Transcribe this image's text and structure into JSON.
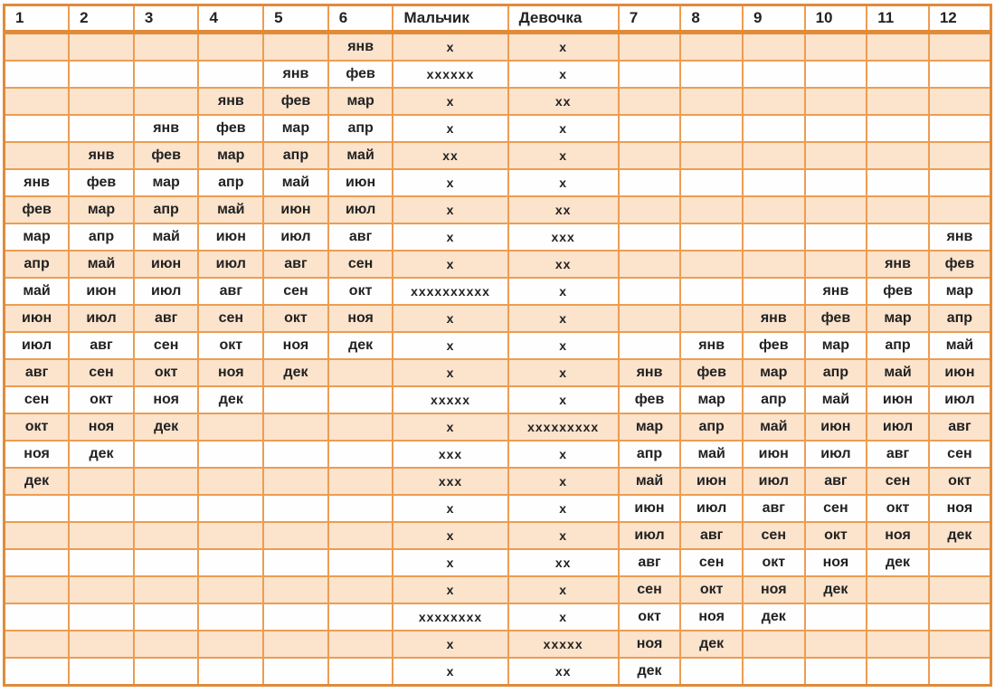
{
  "chart_data": {
    "type": "table",
    "title": "",
    "columns": [
      "1",
      "2",
      "3",
      "4",
      "5",
      "6",
      "Мальчик",
      "Девочка",
      "7",
      "8",
      "9",
      "10",
      "11",
      "12"
    ],
    "rows": [
      [
        "",
        "",
        "",
        "",
        "",
        "янв",
        "х",
        "х",
        "",
        "",
        "",
        "",
        "",
        ""
      ],
      [
        "",
        "",
        "",
        "",
        "янв",
        "фев",
        "хххххх",
        "х",
        "",
        "",
        "",
        "",
        "",
        ""
      ],
      [
        "",
        "",
        "",
        "янв",
        "фев",
        "мар",
        "х",
        "хх",
        "",
        "",
        "",
        "",
        "",
        ""
      ],
      [
        "",
        "",
        "янв",
        "фев",
        "мар",
        "апр",
        "х",
        "х",
        "",
        "",
        "",
        "",
        "",
        ""
      ],
      [
        "",
        "янв",
        "фев",
        "мар",
        "апр",
        "май",
        "хх",
        "х",
        "",
        "",
        "",
        "",
        "",
        ""
      ],
      [
        "янв",
        "фев",
        "мар",
        "апр",
        "май",
        "июн",
        "х",
        "х",
        "",
        "",
        "",
        "",
        "",
        ""
      ],
      [
        "фев",
        "мар",
        "апр",
        "май",
        "июн",
        "июл",
        "х",
        "хх",
        "",
        "",
        "",
        "",
        "",
        ""
      ],
      [
        "мар",
        "апр",
        "май",
        "июн",
        "июл",
        "авг",
        "х",
        "ххх",
        "",
        "",
        "",
        "",
        "",
        "янв"
      ],
      [
        "апр",
        "май",
        "июн",
        "июл",
        "авг",
        "сен",
        "х",
        "хх",
        "",
        "",
        "",
        "",
        "янв",
        "фев"
      ],
      [
        "май",
        "июн",
        "июл",
        "авг",
        "сен",
        "окт",
        "хххххххххх",
        "х",
        "",
        "",
        "",
        "янв",
        "фев",
        "мар"
      ],
      [
        "июн",
        "июл",
        "авг",
        "сен",
        "окт",
        "ноя",
        "х",
        "х",
        "",
        "",
        "янв",
        "фев",
        "мар",
        "апр"
      ],
      [
        "июл",
        "авг",
        "сен",
        "окт",
        "ноя",
        "дек",
        "х",
        "х",
        "",
        "янв",
        "фев",
        "мар",
        "апр",
        "май"
      ],
      [
        "авг",
        "сен",
        "окт",
        "ноя",
        "дек",
        "",
        "х",
        "х",
        "янв",
        "фев",
        "мар",
        "апр",
        "май",
        "июн"
      ],
      [
        "сен",
        "окт",
        "ноя",
        "дек",
        "",
        "",
        "ххххх",
        "х",
        "фев",
        "мар",
        "апр",
        "май",
        "июн",
        "июл"
      ],
      [
        "окт",
        "ноя",
        "дек",
        "",
        "",
        "",
        "х",
        "ххххххххх",
        "мар",
        "апр",
        "май",
        "июн",
        "июл",
        "авг"
      ],
      [
        "ноя",
        "дек",
        "",
        "",
        "",
        "",
        "ххх",
        "х",
        "апр",
        "май",
        "июн",
        "июл",
        "авг",
        "сен"
      ],
      [
        "дек",
        "",
        "",
        "",
        "",
        "",
        "ххх",
        "х",
        "май",
        "июн",
        "июл",
        "авг",
        "сен",
        "окт"
      ],
      [
        "",
        "",
        "",
        "",
        "",
        "",
        "х",
        "х",
        "июн",
        "июл",
        "авг",
        "сен",
        "окт",
        "ноя"
      ],
      [
        "",
        "",
        "",
        "",
        "",
        "",
        "х",
        "х",
        "июл",
        "авг",
        "сен",
        "окт",
        "ноя",
        "дек"
      ],
      [
        "",
        "",
        "",
        "",
        "",
        "",
        "х",
        "хх",
        "авг",
        "сен",
        "окт",
        "ноя",
        "дек",
        ""
      ],
      [
        "",
        "",
        "",
        "",
        "",
        "",
        "х",
        "х",
        "сен",
        "окт",
        "ноя",
        "дек",
        "",
        ""
      ],
      [
        "",
        "",
        "",
        "",
        "",
        "",
        "хххххххх",
        "х",
        "окт",
        "ноя",
        "дек",
        "",
        "",
        ""
      ],
      [
        "",
        "",
        "",
        "",
        "",
        "",
        "х",
        "ххххх",
        "ноя",
        "дек",
        "",
        "",
        "",
        ""
      ],
      [
        "",
        "",
        "",
        "",
        "",
        "",
        "х",
        "хх",
        "дек",
        "",
        "",
        "",
        "",
        ""
      ]
    ]
  },
  "colors": {
    "border": "#ec9d52",
    "border_strong": "#e08b3a",
    "row_peach": "#fbe3cc",
    "row_white": "#fefefe",
    "header_bg": "#ffffff",
    "text": "#222222"
  }
}
